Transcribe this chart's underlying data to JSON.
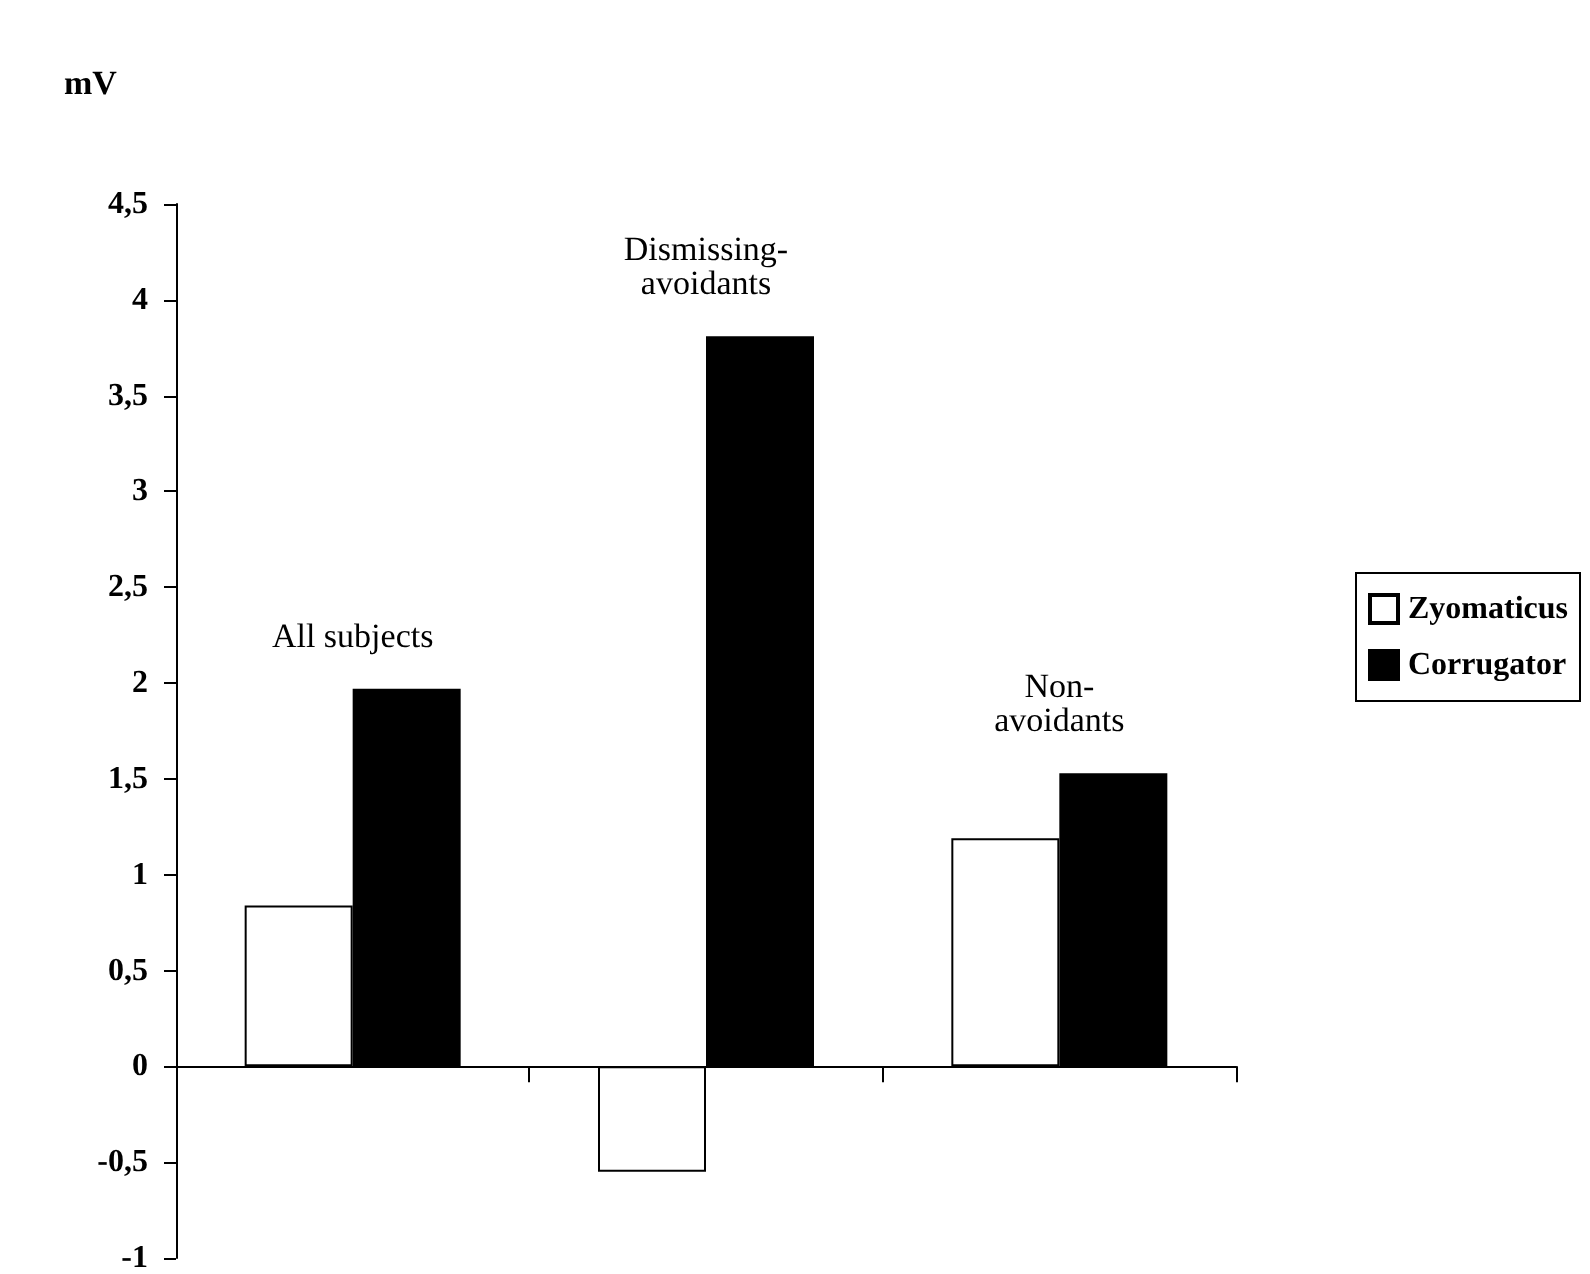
{
  "chart_data": {
    "type": "bar",
    "ylabel": "mV",
    "categories": [
      "All subjects",
      "Dismissing-\navoidants",
      "Non-\navoidants"
    ],
    "series": [
      {
        "name": "Zyomaticus",
        "color": "#ffffff",
        "values": [
          0.84,
          -0.55,
          1.19
        ]
      },
      {
        "name": "Corrugator",
        "color": "#000000",
        "values": [
          1.97,
          3.81,
          1.53
        ]
      }
    ],
    "ylim": [
      -1,
      4.5
    ],
    "yticks": [
      -1,
      {
        "value": -0.5,
        "label": "-0,5"
      },
      0,
      {
        "value": 0.5,
        "label": "0,5"
      },
      1,
      {
        "value": 1.5,
        "label": "1,5"
      },
      2,
      {
        "value": 2.5,
        "label": "2,5"
      },
      3,
      {
        "value": 3.5,
        "label": "3,5"
      },
      4,
      {
        "value": 4.5,
        "label": "4,5"
      }
    ],
    "legend": "right"
  }
}
